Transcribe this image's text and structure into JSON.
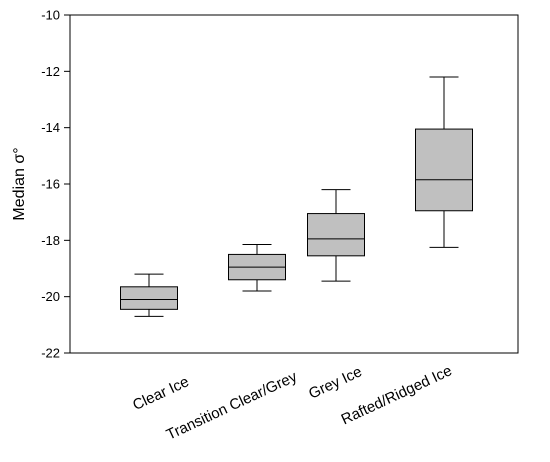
{
  "chart_data": {
    "type": "box",
    "title": "",
    "xlabel": "",
    "ylabel": "Median σ°",
    "ylim": [
      -22,
      -10
    ],
    "yticks": [
      -22,
      -20,
      -18,
      -16,
      -14,
      -12,
      -10
    ],
    "grid": false,
    "legend": "none",
    "box_color": "#c0c0c0",
    "categories": [
      "Clear Ice",
      "Transition Clear/Grey",
      "Grey Ice",
      "Rafted/Ridged Ice"
    ],
    "boxes": [
      {
        "category": "Clear Ice",
        "whisker_low": -20.7,
        "q1": -20.45,
        "median": -20.1,
        "q3": -19.65,
        "whisker_high": -19.2
      },
      {
        "category": "Transition Clear/Grey",
        "whisker_low": -19.8,
        "q1": -19.4,
        "median": -18.95,
        "q3": -18.5,
        "whisker_high": -18.15
      },
      {
        "category": "Grey Ice",
        "whisker_low": -19.45,
        "q1": -18.55,
        "median": -17.95,
        "q3": -17.05,
        "whisker_high": -16.2
      },
      {
        "category": "Rafted/Ridged Ice",
        "whisker_low": -18.25,
        "q1": -16.95,
        "median": -15.85,
        "q3": -14.05,
        "whisker_high": -12.2
      }
    ]
  }
}
